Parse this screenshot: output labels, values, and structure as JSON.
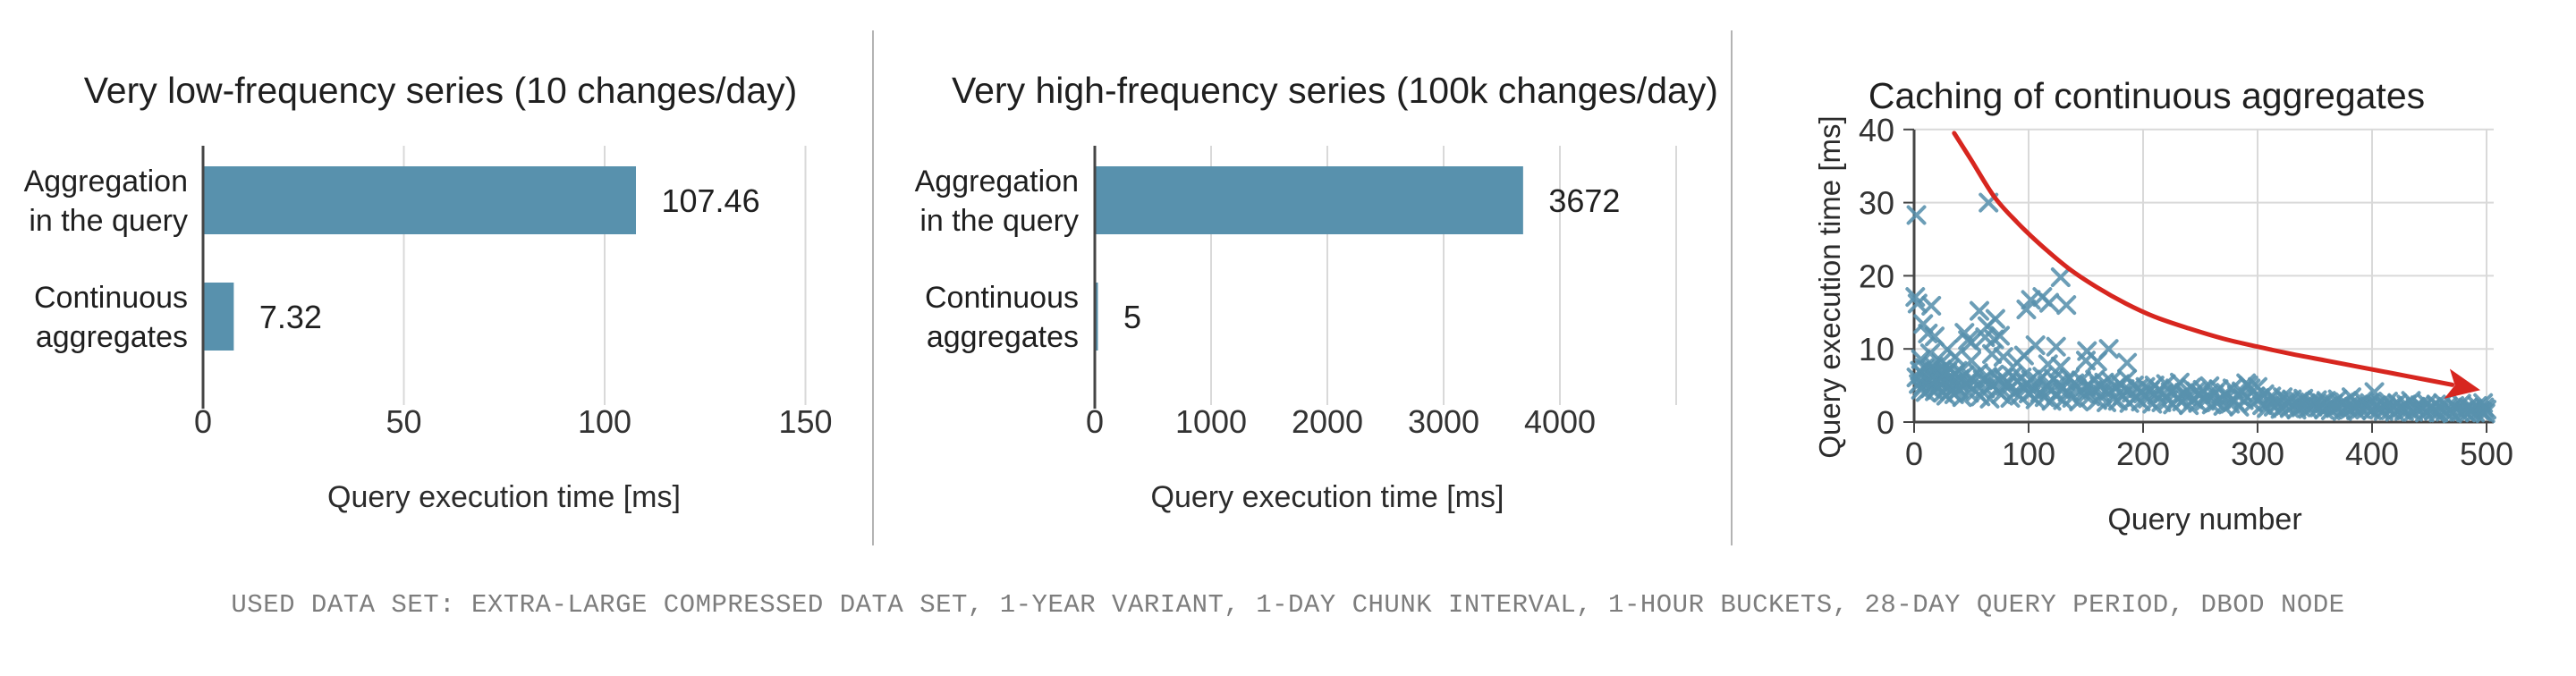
{
  "caption": "USED DATA SET: EXTRA-LARGE COMPRESSED DATA SET, 1-YEAR VARIANT, 1-DAY CHUNK INTERVAL, 1-HOUR BUCKETS, 28-DAY QUERY PERIOD, DBOD NODE",
  "colors": {
    "bar": "#5891ad",
    "scatter": "#5891ad",
    "trend": "#d7261f",
    "grid_light": "#d9d9d9",
    "axis_dark": "#454545",
    "divider": "#b3b3b3",
    "caption_text": "#7d7d7d"
  },
  "chart_data": [
    {
      "type": "bar",
      "orientation": "horizontal",
      "title": "Very low-frequency series (10 changes/day)",
      "categories": [
        "Aggregation\nin the query",
        "Continuous\naggregates"
      ],
      "values": [
        107.46,
        7.32
      ],
      "value_labels": [
        "107.46",
        "7.32"
      ],
      "xlabel": "Query execution time [ms]",
      "xticks": [
        0,
        50,
        100,
        150
      ],
      "xgrid": [
        0,
        50,
        100,
        150
      ],
      "xlim": [
        0,
        160
      ],
      "grid": true,
      "legend": false
    },
    {
      "type": "bar",
      "orientation": "horizontal",
      "title": "Very high-frequency series (100k changes/day)",
      "categories": [
        "Aggregation\nin the query",
        "Continuous\naggregates"
      ],
      "values": [
        3672,
        5
      ],
      "value_labels": [
        "3672",
        "5"
      ],
      "xlabel": "Query execution time [ms]",
      "xticks": [
        0,
        1000,
        2000,
        3000,
        4000
      ],
      "xgrid": [
        0,
        1000,
        2000,
        3000,
        4000,
        5000
      ],
      "xlim": [
        0,
        5000
      ],
      "grid": true,
      "legend": false
    },
    {
      "type": "scatter",
      "title": "Caching of continuous aggregates",
      "xlabel": "Query number",
      "ylabel": "Query execution time [ms]",
      "xticks": [
        0,
        100,
        200,
        300,
        400,
        500
      ],
      "yticks": [
        0,
        10,
        20,
        30,
        40
      ],
      "xlim": [
        0,
        510
      ],
      "ylim": [
        0,
        40
      ],
      "grid": true,
      "legend": false,
      "marker": "x",
      "points": [
        [
          1,
          17.1
        ],
        [
          2,
          28.3
        ],
        [
          2,
          6.1
        ],
        [
          3,
          16.2
        ],
        [
          4,
          5.2
        ],
        [
          5,
          7
        ],
        [
          6,
          4.4
        ],
        [
          6,
          8.6
        ],
        [
          7,
          6.6
        ],
        [
          8,
          5
        ],
        [
          8,
          13.4
        ],
        [
          9,
          7.4
        ],
        [
          10,
          4.1
        ],
        [
          11,
          6
        ],
        [
          12,
          12.1
        ],
        [
          12,
          5.5
        ],
        [
          13,
          7.1
        ],
        [
          15,
          15.9
        ],
        [
          14,
          9.4
        ],
        [
          14,
          4.6
        ],
        [
          15,
          6.3
        ],
        [
          16,
          5.1
        ],
        [
          17,
          7.6
        ],
        [
          18,
          4.2
        ],
        [
          19,
          5.8
        ],
        [
          20,
          6.9
        ],
        [
          18,
          11.7
        ],
        [
          21,
          4.8
        ],
        [
          22,
          6.2
        ],
        [
          23,
          5.3
        ],
        [
          24,
          8.2
        ],
        [
          24,
          7.2
        ],
        [
          25,
          4
        ],
        [
          26,
          6.5
        ],
        [
          27,
          5.6
        ],
        [
          28,
          3.6
        ],
        [
          29,
          6.8
        ],
        [
          29,
          9.9
        ],
        [
          30,
          5
        ],
        [
          31,
          7.3
        ],
        [
          32,
          4.3
        ],
        [
          33,
          6.1
        ],
        [
          34,
          5.4
        ],
        [
          35,
          3.8
        ],
        [
          36,
          8.9
        ],
        [
          36,
          6.6
        ],
        [
          37,
          4.9
        ],
        [
          38,
          7
        ],
        [
          39,
          4.5
        ],
        [
          47,
          11.2
        ],
        [
          40,
          5.9
        ],
        [
          42,
          3.4
        ],
        [
          44,
          12.2
        ],
        [
          44,
          6.4
        ],
        [
          57,
          15.2
        ],
        [
          46,
          5.2
        ],
        [
          48,
          4
        ],
        [
          50,
          8.4
        ],
        [
          50,
          10.9
        ],
        [
          50,
          6
        ],
        [
          52,
          5.5
        ],
        [
          62,
          11.6
        ],
        [
          54,
          4.2
        ],
        [
          65,
          30
        ],
        [
          56,
          6.7
        ],
        [
          70,
          11.3
        ],
        [
          58,
          3.5
        ],
        [
          71,
          14.1
        ],
        [
          60,
          5.8
        ],
        [
          62,
          4.6
        ],
        [
          64,
          13.1
        ],
        [
          64,
          6.2
        ],
        [
          66,
          3.2
        ],
        [
          68,
          9.3
        ],
        [
          68,
          5.1
        ],
        [
          70,
          6.5
        ],
        [
          72,
          4.4
        ],
        [
          74,
          5.7
        ],
        [
          75,
          11.8
        ],
        [
          76,
          3.8
        ],
        [
          78,
          8.9
        ],
        [
          78,
          6
        ],
        [
          80,
          4.9
        ],
        [
          82,
          5.4
        ],
        [
          84,
          3.3
        ],
        [
          86,
          6.3
        ],
        [
          88,
          4.1
        ],
        [
          90,
          8.1
        ],
        [
          90,
          5.6
        ],
        [
          92,
          3.6
        ],
        [
          94,
          6.1
        ],
        [
          96,
          9.1
        ],
        [
          96,
          4.7
        ],
        [
          98,
          15.4
        ],
        [
          98,
          5.2
        ],
        [
          100,
          3.9
        ],
        [
          102,
          16.7
        ],
        [
          102,
          5.8
        ],
        [
          104,
          4.3
        ],
        [
          106,
          10.5
        ],
        [
          106,
          3.1
        ],
        [
          112,
          17.1
        ],
        [
          108,
          5.5
        ],
        [
          110,
          4
        ],
        [
          112,
          6.2
        ],
        [
          118,
          16.3
        ],
        [
          114,
          3.4
        ],
        [
          116,
          5
        ],
        [
          117,
          7.9
        ],
        [
          118,
          4.5
        ],
        [
          120,
          2.9
        ],
        [
          133,
          16
        ],
        [
          122,
          5.9
        ],
        [
          124,
          3.7
        ],
        [
          126,
          5.2
        ],
        [
          128,
          7.6
        ],
        [
          128,
          4.4
        ],
        [
          130,
          3
        ],
        [
          124,
          10.3
        ],
        [
          132,
          5.6
        ],
        [
          134,
          4.1
        ],
        [
          136,
          6
        ],
        [
          138,
          3.3
        ],
        [
          140,
          5.3
        ],
        [
          142,
          4.6
        ],
        [
          150,
          8.4
        ],
        [
          144,
          2.8
        ],
        [
          146,
          5.7
        ],
        [
          148,
          3.9
        ],
        [
          150,
          4.8
        ],
        [
          151,
          9.7
        ],
        [
          128,
          19.8
        ],
        [
          152,
          5.1
        ],
        [
          154,
          3.5
        ],
        [
          156,
          4.4
        ],
        [
          158,
          5.8
        ],
        [
          160,
          8.3
        ],
        [
          160,
          3
        ],
        [
          162,
          4.9
        ],
        [
          164,
          3.8
        ],
        [
          166,
          5.4
        ],
        [
          168,
          2.7
        ],
        [
          170,
          4.2
        ],
        [
          172,
          5.6
        ],
        [
          170,
          10
        ],
        [
          174,
          3.2
        ],
        [
          176,
          4.7
        ],
        [
          178,
          2.9
        ],
        [
          180,
          5.2
        ],
        [
          182,
          3.6
        ],
        [
          184,
          4.5
        ],
        [
          186,
          8.1
        ],
        [
          186,
          5.9
        ],
        [
          188,
          2.6
        ],
        [
          190,
          4
        ],
        [
          192,
          5
        ],
        [
          194,
          3.4
        ],
        [
          196,
          4.6
        ],
        [
          198,
          2.8
        ],
        [
          200,
          3.9
        ],
        [
          202,
          4.8
        ],
        [
          204,
          3.2
        ],
        [
          206,
          4.3
        ],
        [
          208,
          2.5
        ],
        [
          210,
          5
        ],
        [
          212,
          3.7
        ],
        [
          214,
          4.4
        ],
        [
          216,
          2.7
        ],
        [
          218,
          3.9
        ],
        [
          220,
          5.2
        ],
        [
          222,
          3
        ],
        [
          224,
          4.1
        ],
        [
          226,
          2.4
        ],
        [
          228,
          4.6
        ],
        [
          230,
          3.3
        ],
        [
          232,
          5.4
        ],
        [
          234,
          2.8
        ],
        [
          236,
          4
        ],
        [
          238,
          3.5
        ],
        [
          240,
          2.3
        ],
        [
          242,
          4.7
        ],
        [
          244,
          3.1
        ],
        [
          246,
          4.2
        ],
        [
          248,
          2.6
        ],
        [
          250,
          3.8
        ],
        [
          252,
          4.4
        ],
        [
          254,
          2.9
        ],
        [
          256,
          3.6
        ],
        [
          258,
          4.9
        ],
        [
          260,
          2.4
        ],
        [
          262,
          3.8
        ],
        [
          264,
          2.7
        ],
        [
          266,
          4.5
        ],
        [
          268,
          3.1
        ],
        [
          270,
          2.2
        ],
        [
          272,
          4
        ],
        [
          274,
          3.4
        ],
        [
          276,
          2.5
        ],
        [
          278,
          4.6
        ],
        [
          280,
          2.9
        ],
        [
          282,
          3.7
        ],
        [
          284,
          2.1
        ],
        [
          286,
          4.2
        ],
        [
          288,
          3
        ],
        [
          290,
          5.3
        ],
        [
          292,
          5
        ],
        [
          294,
          4.6
        ],
        [
          296,
          2.6
        ],
        [
          298,
          3.5
        ],
        [
          300,
          4.8
        ],
        [
          302,
          3.3
        ],
        [
          304,
          2.3
        ],
        [
          306,
          3.8
        ],
        [
          308,
          1.9
        ],
        [
          310,
          2.8
        ],
        [
          312,
          3.5
        ],
        [
          314,
          2.1
        ],
        [
          316,
          3
        ],
        [
          318,
          2.5
        ],
        [
          320,
          1.8
        ],
        [
          322,
          3.4
        ],
        [
          324,
          2.2
        ],
        [
          326,
          2.9
        ],
        [
          328,
          1.9
        ],
        [
          330,
          3.1
        ],
        [
          332,
          2.4
        ],
        [
          334,
          1.7
        ],
        [
          336,
          2.8
        ],
        [
          338,
          2
        ],
        [
          340,
          3.2
        ],
        [
          342,
          2.5
        ],
        [
          344,
          1.8
        ],
        [
          346,
          2.7
        ],
        [
          348,
          2.1
        ],
        [
          350,
          2.4
        ],
        [
          352,
          3
        ],
        [
          354,
          2
        ],
        [
          356,
          2.6
        ],
        [
          358,
          1.7
        ],
        [
          360,
          2.9
        ],
        [
          362,
          2.2
        ],
        [
          364,
          1.6
        ],
        [
          366,
          2.5
        ],
        [
          368,
          1.9
        ],
        [
          370,
          3.1
        ],
        [
          372,
          2.3
        ],
        [
          374,
          1.5
        ],
        [
          376,
          2.7
        ],
        [
          378,
          2
        ],
        [
          380,
          1.7
        ],
        [
          382,
          3.4
        ],
        [
          384,
          2.1
        ],
        [
          386,
          1.6
        ],
        [
          388,
          2.4
        ],
        [
          390,
          1.8
        ],
        [
          392,
          2.9
        ],
        [
          394,
          2.2
        ],
        [
          396,
          1.9
        ],
        [
          398,
          2.6
        ],
        [
          400,
          1.6
        ],
        [
          402,
          4.1
        ],
        [
          404,
          2.3
        ],
        [
          406,
          1.7
        ],
        [
          408,
          2.5
        ],
        [
          410,
          1.5
        ],
        [
          412,
          2.1
        ],
        [
          414,
          2.8
        ],
        [
          416,
          1.6
        ],
        [
          418,
          2.2
        ],
        [
          420,
          1.4
        ],
        [
          422,
          2.6
        ],
        [
          424,
          1.8
        ],
        [
          426,
          2
        ],
        [
          428,
          1.5
        ],
        [
          430,
          2.4
        ],
        [
          432,
          1.7
        ],
        [
          434,
          2.9
        ],
        [
          436,
          1.4
        ],
        [
          438,
          2.1
        ],
        [
          440,
          1.6
        ],
        [
          442,
          2.3
        ],
        [
          444,
          1.9
        ],
        [
          446,
          1.3
        ],
        [
          448,
          2.5
        ],
        [
          450,
          1.7
        ],
        [
          452,
          2
        ],
        [
          454,
          1.5
        ],
        [
          456,
          2.4
        ],
        [
          458,
          1.3
        ],
        [
          460,
          1.9
        ],
        [
          462,
          2.6
        ],
        [
          464,
          1.4
        ],
        [
          466,
          2.1
        ],
        [
          468,
          1.6
        ],
        [
          470,
          1.2
        ],
        [
          472,
          2.2
        ],
        [
          474,
          1.8
        ],
        [
          476,
          1.4
        ],
        [
          478,
          2.5
        ],
        [
          480,
          1.6
        ],
        [
          482,
          1.3
        ],
        [
          484,
          2
        ],
        [
          486,
          1.5
        ],
        [
          488,
          1.8
        ],
        [
          490,
          1.3
        ],
        [
          492,
          2.2
        ],
        [
          494,
          1.6
        ],
        [
          496,
          1.4
        ],
        [
          497,
          2.6
        ],
        [
          498,
          2
        ],
        [
          499,
          1.2
        ],
        [
          500,
          1.7
        ]
      ],
      "trend_line": {
        "color": "#d7261f",
        "arrow_end": true,
        "points": [
          [
            35,
            39.5
          ],
          [
            50,
            35.8
          ],
          [
            70,
            30.8
          ],
          [
            90,
            27.3
          ],
          [
            110,
            24.3
          ],
          [
            135,
            21
          ],
          [
            160,
            18.4
          ],
          [
            185,
            16.2
          ],
          [
            210,
            14.4
          ],
          [
            240,
            12.8
          ],
          [
            270,
            11.4
          ],
          [
            300,
            10.3
          ],
          [
            330,
            9.3
          ],
          [
            360,
            8.4
          ],
          [
            390,
            7.5
          ],
          [
            420,
            6.6
          ],
          [
            450,
            5.7
          ],
          [
            470,
            5.1
          ]
        ]
      }
    }
  ]
}
